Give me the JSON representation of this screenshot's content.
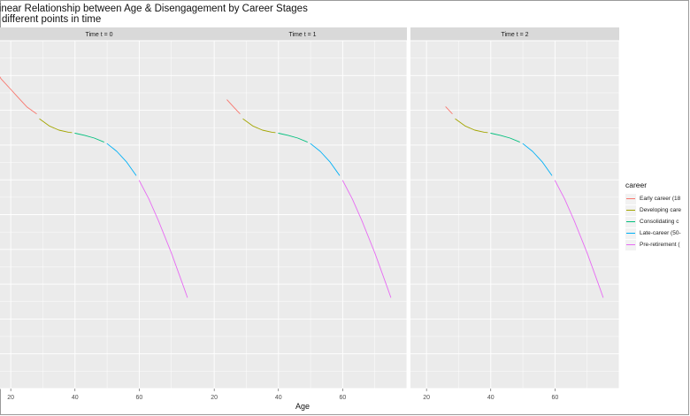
{
  "chart_data": {
    "type": "line",
    "title_line1": "n-linear Relationship between Age & Disengagement by Career Stages",
    "title_line2": "he different points in time",
    "xlabel": "Age",
    "ylabel": "",
    "xlim": [
      15,
      80
    ],
    "ylim": [
      0,
      1
    ],
    "x_ticks": [
      20,
      40,
      60
    ],
    "grid": true,
    "legend_title": "career",
    "legend_position": "right",
    "panels": [
      {
        "label": "Time t = 0",
        "series": [
          {
            "name": "Early career (18",
            "color": "#f8766d",
            "x": [
              15,
              17,
              20,
              22,
              25,
              28
            ],
            "y": [
              0.92,
              0.89,
              0.86,
              0.84,
              0.81,
              0.79
            ]
          },
          {
            "name": "Developing care",
            "color": "#a3a500",
            "x": [
              29,
              32,
              35,
              38,
              39
            ],
            "y": [
              0.775,
              0.755,
              0.743,
              0.737,
              0.736
            ]
          },
          {
            "name": "Consolidating c",
            "color": "#00bf7d",
            "x": [
              40,
              43,
              46,
              49
            ],
            "y": [
              0.734,
              0.728,
              0.72,
              0.709
            ]
          },
          {
            "name": "Late-career (50-",
            "color": "#00b0f6",
            "x": [
              50,
              53,
              56,
              59
            ],
            "y": [
              0.704,
              0.682,
              0.652,
              0.613
            ]
          },
          {
            "name": "Pre-retirement (",
            "color": "#e76bf3",
            "x": [
              60,
              63,
              66,
              70,
              74,
              75
            ],
            "y": [
              0.598,
              0.545,
              0.482,
              0.39,
              0.288,
              0.262
            ]
          }
        ]
      },
      {
        "label": "Time t = 1",
        "series": [
          {
            "name": "Early career (18",
            "color": "#f8766d",
            "x": [
              24,
              26,
              28
            ],
            "y": [
              0.83,
              0.81,
              0.79
            ]
          },
          {
            "name": "Developing care",
            "color": "#a3a500",
            "x": [
              29,
              32,
              35,
              38,
              39
            ],
            "y": [
              0.775,
              0.755,
              0.743,
              0.737,
              0.736
            ]
          },
          {
            "name": "Consolidating c",
            "color": "#00bf7d",
            "x": [
              40,
              43,
              46,
              49
            ],
            "y": [
              0.734,
              0.728,
              0.72,
              0.709
            ]
          },
          {
            "name": "Late-career (50-",
            "color": "#00b0f6",
            "x": [
              50,
              53,
              56,
              59
            ],
            "y": [
              0.704,
              0.682,
              0.652,
              0.613
            ]
          },
          {
            "name": "Pre-retirement (",
            "color": "#e76bf3",
            "x": [
              60,
              63,
              66,
              70,
              74,
              75
            ],
            "y": [
              0.598,
              0.545,
              0.482,
              0.39,
              0.288,
              0.262
            ]
          }
        ]
      },
      {
        "label": "Time t = 2",
        "series": [
          {
            "name": "Early career (18",
            "color": "#f8766d",
            "x": [
              26,
              28
            ],
            "y": [
              0.81,
              0.79
            ]
          },
          {
            "name": "Developing care",
            "color": "#a3a500",
            "x": [
              29,
              32,
              35,
              38,
              39
            ],
            "y": [
              0.775,
              0.755,
              0.743,
              0.737,
              0.736
            ]
          },
          {
            "name": "Consolidating c",
            "color": "#00bf7d",
            "x": [
              40,
              43,
              46,
              49
            ],
            "y": [
              0.734,
              0.728,
              0.72,
              0.709
            ]
          },
          {
            "name": "Late-career (50-",
            "color": "#00b0f6",
            "x": [
              50,
              53,
              56,
              59
            ],
            "y": [
              0.704,
              0.682,
              0.652,
              0.613
            ]
          },
          {
            "name": "Pre-retirement (",
            "color": "#e76bf3",
            "x": [
              60,
              63,
              66,
              70,
              74,
              75
            ],
            "y": [
              0.598,
              0.545,
              0.482,
              0.39,
              0.288,
              0.262
            ]
          }
        ]
      }
    ]
  }
}
